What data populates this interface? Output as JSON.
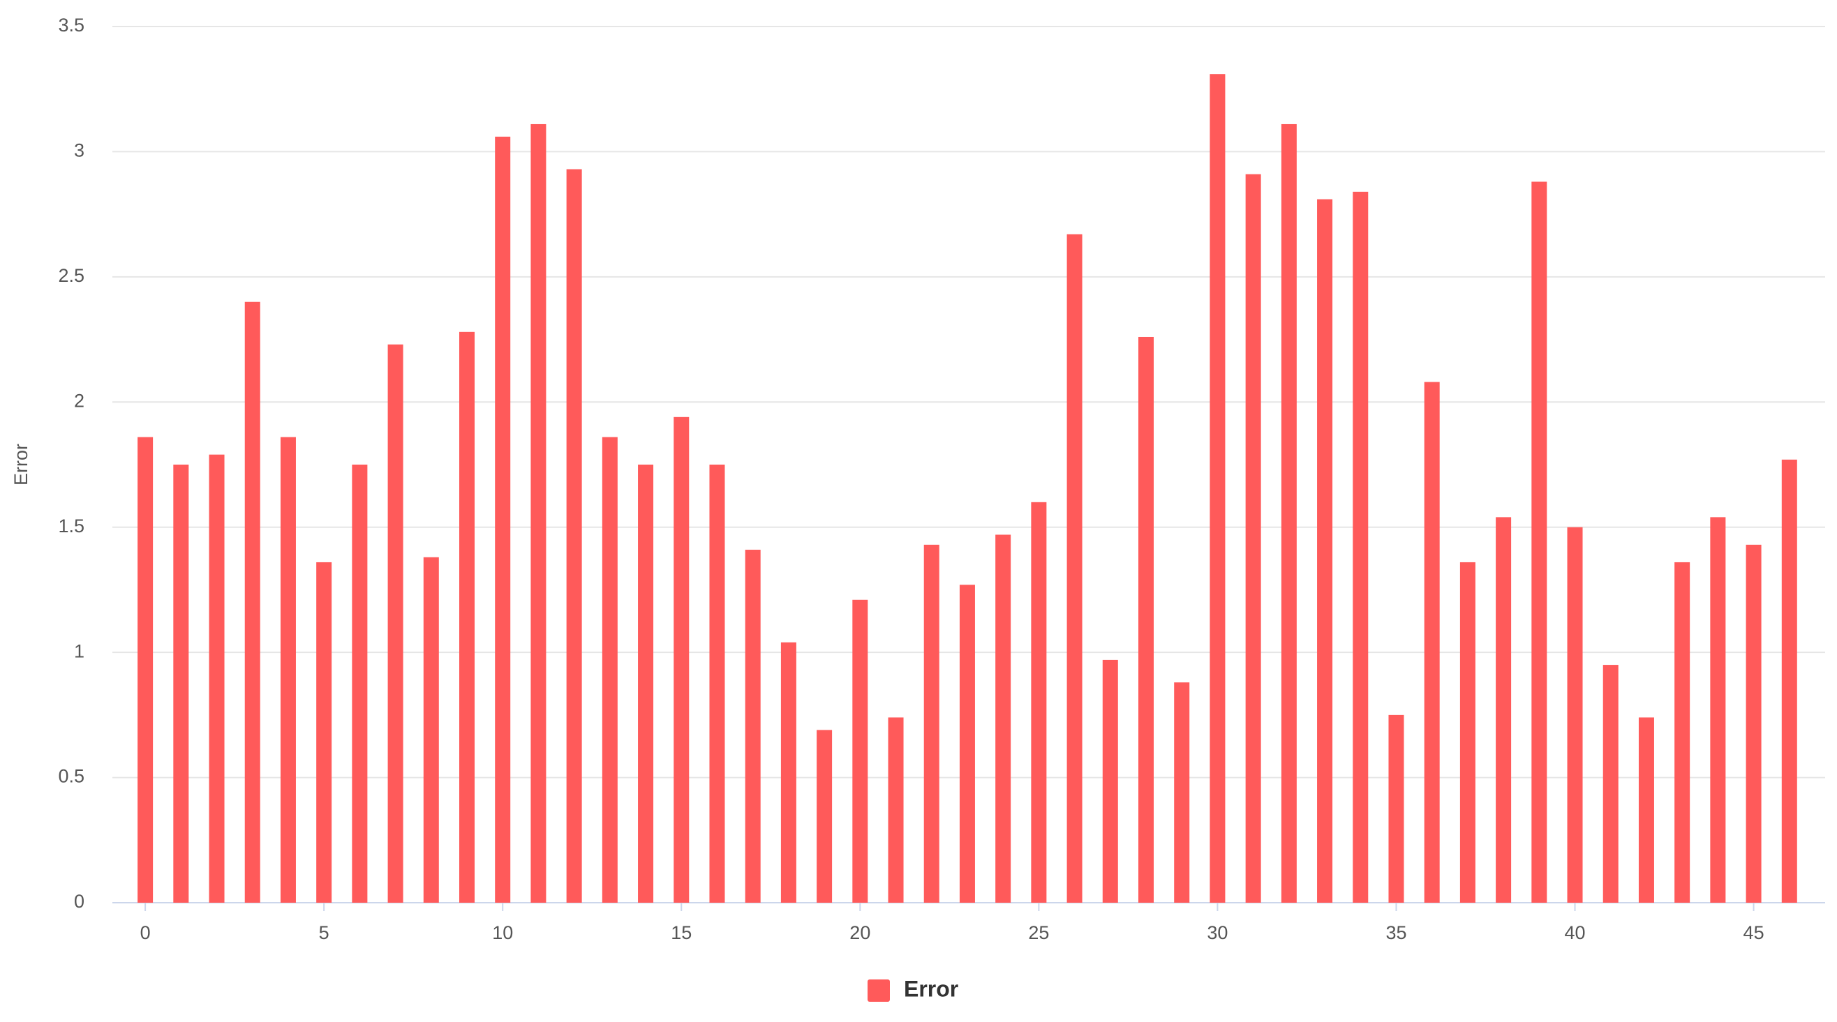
{
  "chart_data": {
    "type": "bar",
    "x": [
      0,
      1,
      2,
      3,
      4,
      5,
      6,
      7,
      8,
      9,
      10,
      11,
      12,
      13,
      14,
      15,
      16,
      17,
      18,
      19,
      20,
      21,
      22,
      23,
      24,
      25,
      26,
      27,
      28,
      29,
      30,
      31,
      32,
      33,
      34,
      35,
      36,
      37,
      38,
      39,
      40,
      41,
      42,
      43,
      44,
      45,
      46
    ],
    "series": [
      {
        "name": "Error",
        "color": "#ff5a5a",
        "values": [
          1.86,
          1.75,
          1.79,
          2.4,
          1.86,
          1.36,
          1.75,
          2.23,
          1.38,
          2.28,
          3.06,
          3.11,
          2.93,
          1.86,
          1.75,
          1.94,
          1.75,
          1.41,
          1.04,
          0.69,
          1.21,
          0.74,
          1.43,
          1.27,
          1.47,
          1.6,
          2.67,
          0.97,
          2.26,
          0.88,
          3.31,
          2.91,
          3.11,
          2.81,
          2.84,
          0.75,
          2.08,
          1.36,
          1.54,
          2.88,
          1.5,
          0.95,
          0.74,
          1.36,
          1.54,
          1.43,
          1.77
        ]
      }
    ],
    "ylabel": "Error",
    "xlim": [
      -0.92,
      47
    ],
    "xticks": [
      0,
      5,
      10,
      15,
      20,
      25,
      30,
      35,
      40,
      45
    ],
    "ylim": [
      0,
      3.5
    ],
    "yticks": [
      0,
      0.5,
      1,
      1.5,
      2,
      2.5,
      3,
      3.5
    ],
    "grid": true,
    "legend": "bottom"
  }
}
